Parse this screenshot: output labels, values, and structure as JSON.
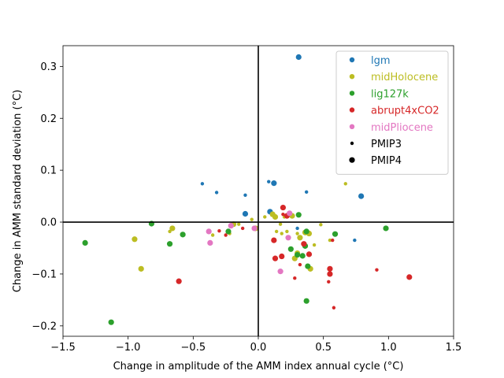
{
  "chart_data": {
    "type": "scatter",
    "xlabel": "Change in amplitude of the AMM index annual cycle (°C)",
    "ylabel": "Change in AMM standard deviation (°C)",
    "xlim": [
      -1.5,
      1.5
    ],
    "ylim": [
      -0.22,
      0.34
    ],
    "xticks": [
      -1.5,
      -1.0,
      -0.5,
      0.0,
      0.5,
      1.0,
      1.5
    ],
    "xtick_labels": [
      "−1.5",
      "−1.0",
      "−0.5",
      "0.0",
      "0.5",
      "1.0",
      "1.5"
    ],
    "yticks": [
      -0.2,
      -0.1,
      0.0,
      0.1,
      0.2,
      0.3
    ],
    "ytick_labels": [
      "−0.2",
      "−0.1",
      "0.0",
      "0.1",
      "0.2",
      "0.3"
    ],
    "zero_lines": true,
    "grid": false,
    "legend_position": "top-right",
    "series": [
      {
        "name": "lgm",
        "color": "#1f77b4",
        "pmip3": [
          [
            -0.43,
            0.074
          ],
          [
            -0.32,
            0.057
          ],
          [
            -0.1,
            0.052
          ],
          [
            0.08,
            0.078
          ],
          [
            0.37,
            0.058
          ],
          [
            0.3,
            -0.012
          ],
          [
            0.74,
            -0.035
          ]
        ],
        "pmip4": [
          [
            0.31,
            0.318
          ],
          [
            0.12,
            0.075
          ],
          [
            0.79,
            0.05
          ],
          [
            -0.1,
            0.016
          ],
          [
            0.09,
            0.02
          ]
        ]
      },
      {
        "name": "midHolocene",
        "color": "#bcbd22",
        "pmip3": [
          [
            0.67,
            0.074
          ],
          [
            -0.05,
            0.005
          ],
          [
            0.05,
            0.01
          ],
          [
            0.2,
            0.01
          ],
          [
            -0.35,
            -0.025
          ],
          [
            -0.68,
            -0.018
          ],
          [
            -0.22,
            -0.022
          ],
          [
            -0.15,
            -0.004
          ],
          [
            0.17,
            -0.004
          ],
          [
            0.14,
            -0.018
          ],
          [
            0.18,
            -0.022
          ],
          [
            0.22,
            -0.018
          ],
          [
            0.3,
            -0.022
          ],
          [
            0.43,
            -0.044
          ],
          [
            0.48,
            -0.005
          ],
          [
            0.55,
            -0.035
          ]
        ],
        "pmip4": [
          [
            -0.66,
            -0.012
          ],
          [
            -0.95,
            -0.033
          ],
          [
            -0.9,
            -0.09
          ],
          [
            -0.02,
            -0.012
          ],
          [
            0.11,
            0.015
          ],
          [
            0.13,
            0.01
          ],
          [
            0.26,
            0.012
          ],
          [
            0.28,
            -0.07
          ],
          [
            0.3,
            -0.06
          ],
          [
            0.32,
            -0.03
          ],
          [
            0.36,
            -0.02
          ],
          [
            0.39,
            -0.022
          ],
          [
            0.4,
            -0.09
          ],
          [
            -0.19,
            -0.004
          ]
        ]
      },
      {
        "name": "lig127k",
        "color": "#2ca02c",
        "pmip3": [],
        "pmip4": [
          [
            -1.33,
            -0.04
          ],
          [
            -1.13,
            -0.193
          ],
          [
            -0.82,
            -0.003
          ],
          [
            -0.68,
            -0.042
          ],
          [
            -0.58,
            -0.024
          ],
          [
            -0.23,
            -0.018
          ],
          [
            0.25,
            -0.052
          ],
          [
            0.3,
            -0.063
          ],
          [
            0.31,
            0.014
          ],
          [
            0.34,
            -0.065
          ],
          [
            0.36,
            -0.046
          ],
          [
            0.37,
            -0.018
          ],
          [
            0.38,
            -0.085
          ],
          [
            0.37,
            -0.152
          ],
          [
            0.59,
            -0.023
          ],
          [
            0.98,
            -0.012
          ]
        ]
      },
      {
        "name": "abrupt4xCO2",
        "color": "#d62728",
        "pmip3": [
          [
            -0.3,
            -0.017
          ],
          [
            -0.25,
            -0.025
          ],
          [
            -0.12,
            -0.012
          ],
          [
            0.19,
            0.015
          ],
          [
            0.28,
            -0.108
          ],
          [
            0.32,
            -0.082
          ],
          [
            0.54,
            -0.115
          ],
          [
            0.57,
            -0.035
          ],
          [
            0.58,
            -0.165
          ],
          [
            0.91,
            -0.092
          ]
        ],
        "pmip4": [
          [
            -0.61,
            -0.114
          ],
          [
            0.12,
            -0.035
          ],
          [
            0.13,
            -0.07
          ],
          [
            0.18,
            -0.066
          ],
          [
            0.19,
            0.028
          ],
          [
            0.22,
            0.012
          ],
          [
            0.35,
            -0.042
          ],
          [
            0.39,
            -0.062
          ],
          [
            0.55,
            -0.09
          ],
          [
            0.55,
            -0.1
          ],
          [
            1.16,
            -0.106
          ]
        ]
      },
      {
        "name": "midPliocene",
        "color": "#e377c2",
        "pmip3": [],
        "pmip4": [
          [
            -0.38,
            -0.018
          ],
          [
            -0.37,
            -0.04
          ],
          [
            -0.21,
            -0.007
          ],
          [
            -0.03,
            -0.012
          ],
          [
            0.17,
            -0.095
          ],
          [
            0.23,
            -0.03
          ],
          [
            0.24,
            0.017
          ]
        ]
      }
    ],
    "marker_legend": [
      "PMIP3",
      "PMIP4"
    ]
  }
}
